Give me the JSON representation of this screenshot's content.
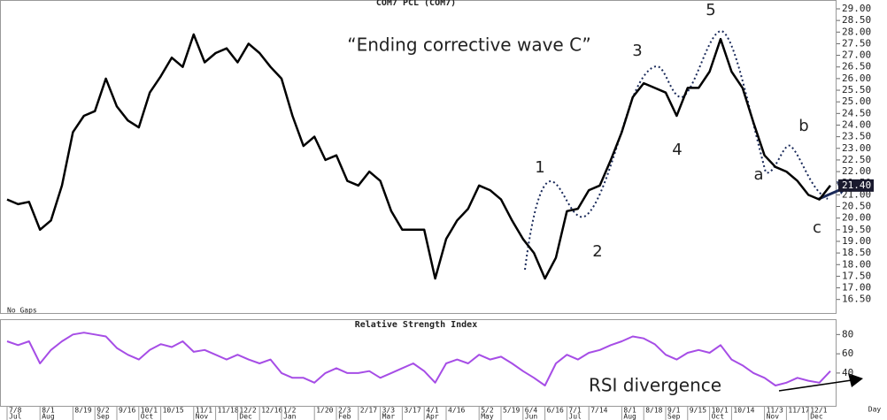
{
  "chart_data": [
    {
      "type": "line",
      "title": "COM7 PCL (COM7)",
      "gap_setting": "No Gaps",
      "color": "#000000",
      "values": [
        20.8,
        20.6,
        20.7,
        19.5,
        19.9,
        21.4,
        23.7,
        24.4,
        24.6,
        26.0,
        24.8,
        24.2,
        23.9,
        25.4,
        26.1,
        26.9,
        26.5,
        27.9,
        26.7,
        27.1,
        27.3,
        26.7,
        27.5,
        27.1,
        26.5,
        26.0,
        24.4,
        23.1,
        23.5,
        22.5,
        22.7,
        21.6,
        21.4,
        22.0,
        21.6,
        20.3,
        19.5,
        19.5,
        19.5,
        17.4,
        19.1,
        19.9,
        20.4,
        21.4,
        21.2,
        20.8,
        19.9,
        19.1,
        18.5,
        17.4,
        18.3,
        20.3,
        20.4,
        21.2,
        21.4,
        22.5,
        23.7,
        25.2,
        25.8,
        25.6,
        25.4,
        24.4,
        25.6,
        25.6,
        26.3,
        27.7,
        26.3,
        25.6,
        24.1,
        22.7,
        22.2,
        22.0,
        21.6,
        21.0,
        20.8,
        21.4
      ],
      "current_price": {
        "value": 21.4,
        "label": "21.40"
      },
      "ylim": [
        15.88,
        29.38
      ],
      "yticks": [
        {
          "value": 16.5,
          "label": "16.50"
        },
        {
          "value": 17,
          "label": "17.00"
        },
        {
          "value": 17.5,
          "label": "17.50"
        },
        {
          "value": 18,
          "label": "18.00"
        },
        {
          "value": 18.5,
          "label": "18.50"
        },
        {
          "value": 19,
          "label": "19.00"
        },
        {
          "value": 19.5,
          "label": "19.50"
        },
        {
          "value": 20,
          "label": "20.00"
        },
        {
          "value": 20.5,
          "label": "20.50"
        },
        {
          "value": 21,
          "label": "21.00"
        },
        {
          "value": 21.5,
          "label": "21.50"
        },
        {
          "value": 22,
          "label": "22.00"
        },
        {
          "value": 22.5,
          "label": "22.50"
        },
        {
          "value": 23,
          "label": "23.00"
        },
        {
          "value": 23.5,
          "label": "23.50"
        },
        {
          "value": 24,
          "label": "24.00"
        },
        {
          "value": 24.5,
          "label": "24.50"
        },
        {
          "value": 25,
          "label": "25.00"
        },
        {
          "value": 25.5,
          "label": "25.50"
        },
        {
          "value": 26,
          "label": "26.00"
        },
        {
          "value": 26.5,
          "label": "26.50"
        },
        {
          "value": 27,
          "label": "27.00"
        },
        {
          "value": 27.5,
          "label": "27.50"
        },
        {
          "value": 28,
          "label": "28.00"
        },
        {
          "value": 28.5,
          "label": "28.50"
        },
        {
          "value": 29,
          "label": "29.00"
        }
      ],
      "annotations": [
        "“Ending corrective wave C”",
        "1",
        "2",
        "3",
        "4",
        "5",
        "a",
        "b",
        "c"
      ]
    },
    {
      "type": "line",
      "title": "Relative Strength Index",
      "color": "#a64de6",
      "values": [
        73,
        69,
        73,
        50,
        64,
        73,
        80,
        82,
        80,
        78,
        66,
        59,
        54,
        64,
        70,
        67,
        73,
        62,
        64,
        59,
        54,
        59,
        54,
        50,
        54,
        40,
        35,
        35,
        30,
        40,
        45,
        40,
        40,
        42,
        35,
        40,
        45,
        50,
        42,
        30,
        50,
        54,
        50,
        59,
        54,
        57,
        50,
        42,
        35,
        27,
        50,
        59,
        54,
        61,
        64,
        69,
        73,
        78,
        76,
        70,
        59,
        54,
        61,
        64,
        61,
        69,
        54,
        48,
        40,
        35,
        27,
        30,
        35,
        32,
        30,
        42
      ],
      "ylim": [
        5,
        95
      ],
      "yticks": [
        40,
        60,
        80
      ],
      "annotations": [
        "RSI divergence"
      ],
      "x_label": "Day",
      "categories": [
        "7/8",
        null,
        null,
        "8/1",
        null,
        null,
        "8/19",
        null,
        "9/2",
        null,
        "9/16",
        null,
        "10/1",
        null,
        "10/15",
        null,
        null,
        "11/1",
        null,
        "11/18",
        null,
        "12/2",
        null,
        "12/16",
        null,
        "1/2",
        null,
        null,
        "1/20",
        null,
        "2/3",
        null,
        "2/17",
        null,
        "3/3",
        null,
        "3/17",
        null,
        "4/1",
        null,
        "4/16",
        null,
        null,
        "5/2",
        null,
        "5/19",
        null,
        "6/4",
        null,
        "6/16",
        null,
        "7/1",
        null,
        "7/14",
        null,
        null,
        "8/1",
        null,
        "8/18",
        null,
        "9/1",
        null,
        "9/15",
        null,
        "10/1",
        null,
        "10/14",
        null,
        null,
        "11/3",
        null,
        "11/17",
        null,
        "12/1",
        null,
        null
      ],
      "months": [
        "Jul",
        null,
        null,
        "Aug",
        null,
        null,
        null,
        null,
        "Sep",
        null,
        null,
        null,
        "Oct",
        null,
        null,
        null,
        null,
        "Nov",
        null,
        null,
        null,
        "Dec",
        null,
        null,
        null,
        "Jan",
        null,
        null,
        null,
        null,
        "Feb",
        null,
        null,
        null,
        "Mar",
        null,
        null,
        null,
        "Apr",
        null,
        null,
        null,
        null,
        "May",
        null,
        null,
        null,
        "Jun",
        null,
        null,
        null,
        "Jul",
        null,
        null,
        null,
        null,
        "Aug",
        null,
        null,
        null,
        "Sep",
        null,
        null,
        null,
        "Oct",
        null,
        null,
        null,
        null,
        "Nov",
        null,
        null,
        null,
        "Dec",
        null,
        null
      ]
    }
  ]
}
